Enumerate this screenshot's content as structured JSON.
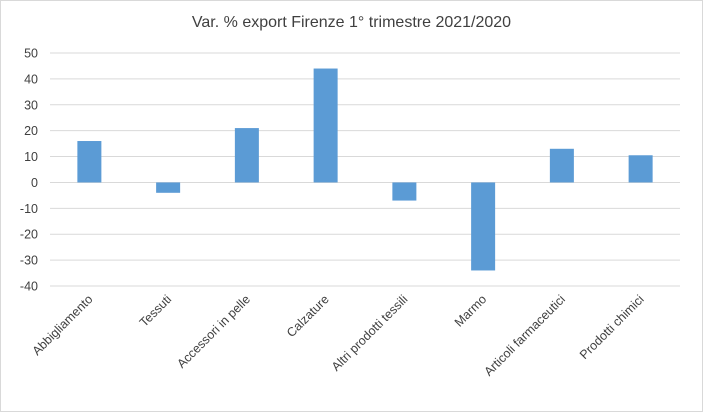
{
  "chart_data": {
    "type": "bar",
    "title": "Var. % export Firenze 1° trimestre 2021/2020",
    "xlabel": "",
    "ylabel": "",
    "categories": [
      "Abbigliamento",
      "Tessuti",
      "Accessori in pelle",
      "Calzature",
      "Altri prodotti tessili",
      "Marmo",
      "Articoli farmaceutici",
      "Prodotti chimici"
    ],
    "values": [
      16,
      -4,
      21,
      44,
      -7,
      -34,
      13,
      10.5
    ],
    "ylim": [
      -40,
      50
    ],
    "yticks": [
      50,
      40,
      30,
      20,
      10,
      0,
      -10,
      -20,
      -30,
      -40
    ],
    "grid": true,
    "legend": "none",
    "bar_color": "#5b9bd5",
    "grid_color": "#d9d9d9"
  }
}
